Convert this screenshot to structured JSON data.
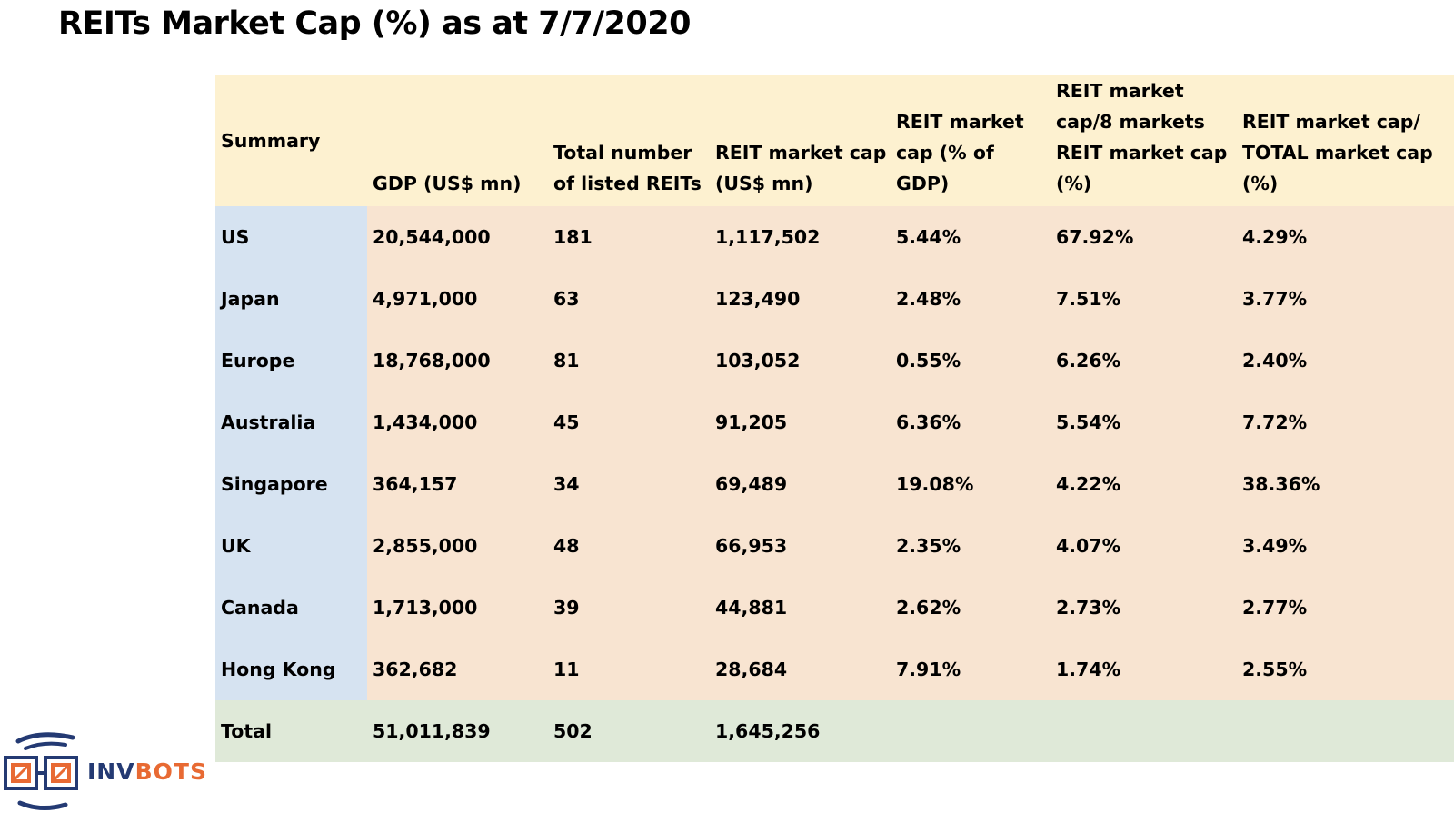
{
  "title": "REITs Market Cap (%) as at 7/7/2020",
  "chart_data": {
    "type": "table",
    "title": "REITs Market Cap (%) as at 7/7/2020",
    "columns": [
      "Summary",
      "GDP (US$ mn)",
      "Total number of listed REITs",
      "REIT market cap (US$ mn)",
      "REIT market cap (% of GDP)",
      "REIT market cap/8 markets REIT market cap (%)",
      "REIT market cap/ TOTAL market cap (%)"
    ],
    "rows": [
      [
        "US",
        "20,544,000",
        "181",
        "1,117,502",
        "5.44%",
        "67.92%",
        "4.29%"
      ],
      [
        "Japan",
        "4,971,000",
        "63",
        "123,490",
        "2.48%",
        "7.51%",
        "3.77%"
      ],
      [
        "Europe",
        "18,768,000",
        "81",
        "103,052",
        "0.55%",
        "6.26%",
        "2.40%"
      ],
      [
        "Australia",
        "1,434,000",
        "45",
        "91,205",
        "6.36%",
        "5.54%",
        "7.72%"
      ],
      [
        "Singapore",
        "364,157",
        "34",
        "69,489",
        "19.08%",
        "4.22%",
        "38.36%"
      ],
      [
        "UK",
        "2,855,000",
        "48",
        "66,953",
        "2.35%",
        "4.07%",
        "3.49%"
      ],
      [
        "Canada",
        "1,713,000",
        "39",
        "44,881",
        "2.62%",
        "2.73%",
        "2.77%"
      ],
      [
        "Hong Kong",
        "362,682",
        "11",
        "28,684",
        "7.91%",
        "1.74%",
        "2.55%"
      ]
    ],
    "total": [
      "Total",
      "51,011,839",
      "502",
      "1,645,256",
      "",
      "",
      ""
    ]
  },
  "logo": {
    "text_part1": "INV",
    "text_part2": "BOTS",
    "icon": "robot-glasses-logo-icon"
  },
  "colors": {
    "header_bg": "#fdf1d0",
    "region_bg": "#d6e3f1",
    "data_bg": "#f8e4d1",
    "total_bg": "#dfe9d8",
    "logo_navy": "#243a73",
    "logo_orange": "#e86a33"
  }
}
